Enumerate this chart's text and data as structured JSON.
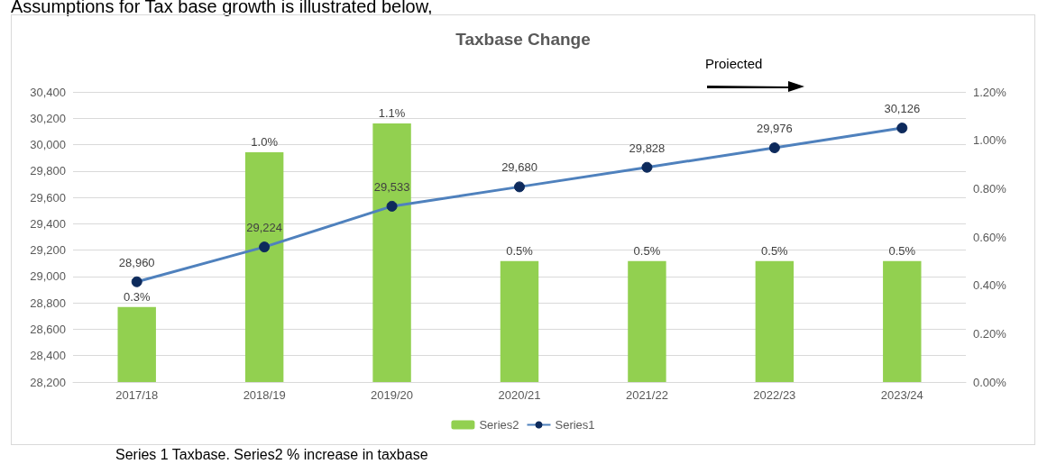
{
  "chart_data": {
    "type": "bar",
    "title": "Taxbase Change",
    "categories": [
      "2017/18",
      "2018/19",
      "2019/20",
      "2020/21",
      "2021/22",
      "2022/23",
      "2023/24"
    ],
    "series": [
      {
        "name": "Series2",
        "axis": "y2",
        "color": "#92d050",
        "values": [
          0.31,
          0.95,
          1.07,
          0.5,
          0.5,
          0.5,
          0.5
        ],
        "value_labels": [
          "0.3%",
          "1.0%",
          "1.1%",
          "0.5%",
          "0.5%",
          "0.5%",
          "0.5%"
        ]
      },
      {
        "name": "Series1",
        "type": "line",
        "color": "#4f81bd",
        "values": [
          28960,
          29224,
          29533,
          29680,
          29828,
          29976,
          30126
        ],
        "value_labels": [
          "28,960",
          "29,224",
          "29,533",
          "29,680",
          "29,828",
          "29,976",
          "30,126"
        ],
        "marker": "circle"
      }
    ],
    "ylim": [
      28200,
      30400
    ],
    "yticks": [
      {
        "value": 28200,
        "label": "28,200"
      },
      {
        "value": 28400,
        "label": "28,400"
      },
      {
        "value": 28600,
        "label": "28,600"
      },
      {
        "value": 28800,
        "label": "28,800"
      },
      {
        "value": 29000,
        "label": "29,000"
      },
      {
        "value": 29200,
        "label": "29,200"
      },
      {
        "value": 29400,
        "label": "29,400"
      },
      {
        "value": 29600,
        "label": "29,600"
      },
      {
        "value": 29800,
        "label": "29,800"
      },
      {
        "value": 30000,
        "label": "30,000"
      },
      {
        "value": 30200,
        "label": "30,200"
      },
      {
        "value": 30400,
        "label": "30,400"
      }
    ],
    "y2lim": [
      0,
      1.2
    ],
    "y2ticks": [
      {
        "value": 0,
        "label": "0.00%"
      },
      {
        "value": 0.2,
        "label": "0.20%"
      },
      {
        "value": 0.4,
        "label": "0.40%"
      },
      {
        "value": 0.6,
        "label": "0.60%"
      },
      {
        "value": 0.8,
        "label": "0.80%"
      },
      {
        "value": 1.0,
        "label": "1.00%"
      },
      {
        "value": 1.2,
        "label": "1.20%"
      }
    ],
    "grid": "y",
    "legend": "bottom",
    "annotations": [
      "Assumptions for Tax base growth is illustrated below,",
      "Proiected",
      "Series 1 Taxbase. Series2 % increase in taxbase"
    ]
  }
}
